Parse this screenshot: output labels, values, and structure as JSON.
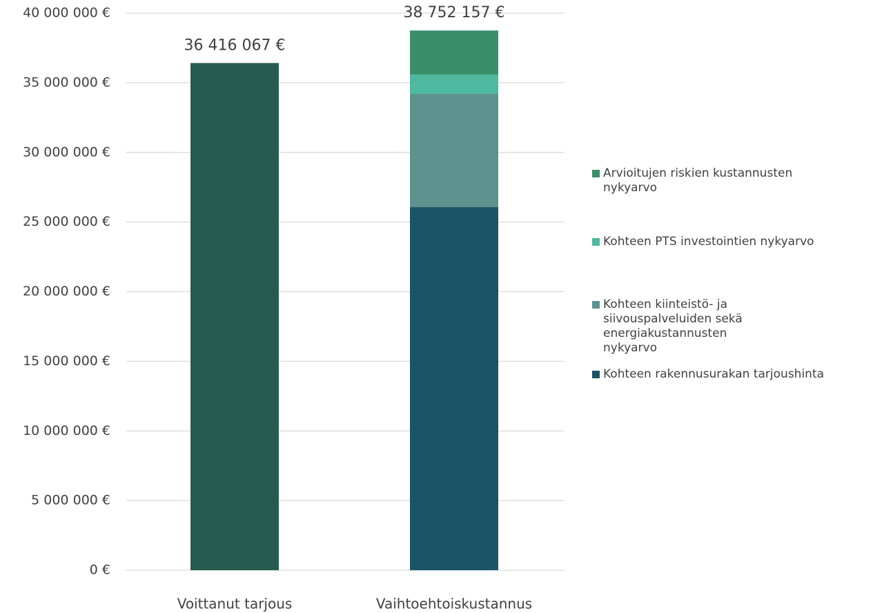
{
  "chart_data": {
    "type": "stacked_bar",
    "categories": [
      "Voittanut tarjous",
      "Vaihtoehtoiskustannus"
    ],
    "series": [
      {
        "color": "#265c4f",
        "values": [
          36416067,
          null
        ]
      },
      {
        "name": "Kohteen rakennusurakan tarjoushinta",
        "color": "#1a5466",
        "values": [
          null,
          26070000
        ]
      },
      {
        "name": "Kohteen kiinteistö- ja siivouspalveluiden sekä energiakustannusten nykyarvo",
        "color": "#5e928f",
        "values": [
          null,
          8130000
        ]
      },
      {
        "name": "Kohteen PTS investointien nykyarvo",
        "color": "#4fb8a0",
        "values": [
          null,
          1390000
        ]
      },
      {
        "name": "Arvioitujen riskien kustannusten nykyarvo",
        "color": "#3a8f6a",
        "values": [
          null,
          3162157
        ]
      }
    ],
    "totals": [
      36416067,
      38752157
    ],
    "total_labels": [
      "36 416 067 €",
      "38 752 157 €"
    ],
    "ylim": [
      0,
      40000000
    ],
    "yticks": [
      {
        "value": 0,
        "label": "0 €"
      },
      {
        "value": 5000000,
        "label": "5 000 000 €"
      },
      {
        "value": 10000000,
        "label": "10 000 000 €"
      },
      {
        "value": 15000000,
        "label": "15 000 000 €"
      },
      {
        "value": 20000000,
        "label": "20 000 000 €"
      },
      {
        "value": 25000000,
        "label": "25 000 000 €"
      },
      {
        "value": 30000000,
        "label": "30 000 000 €"
      },
      {
        "value": 35000000,
        "label": "35 000 000 €"
      },
      {
        "value": 40000000,
        "label": "40 000 000 €"
      }
    ],
    "grid": true,
    "legend": "right"
  }
}
